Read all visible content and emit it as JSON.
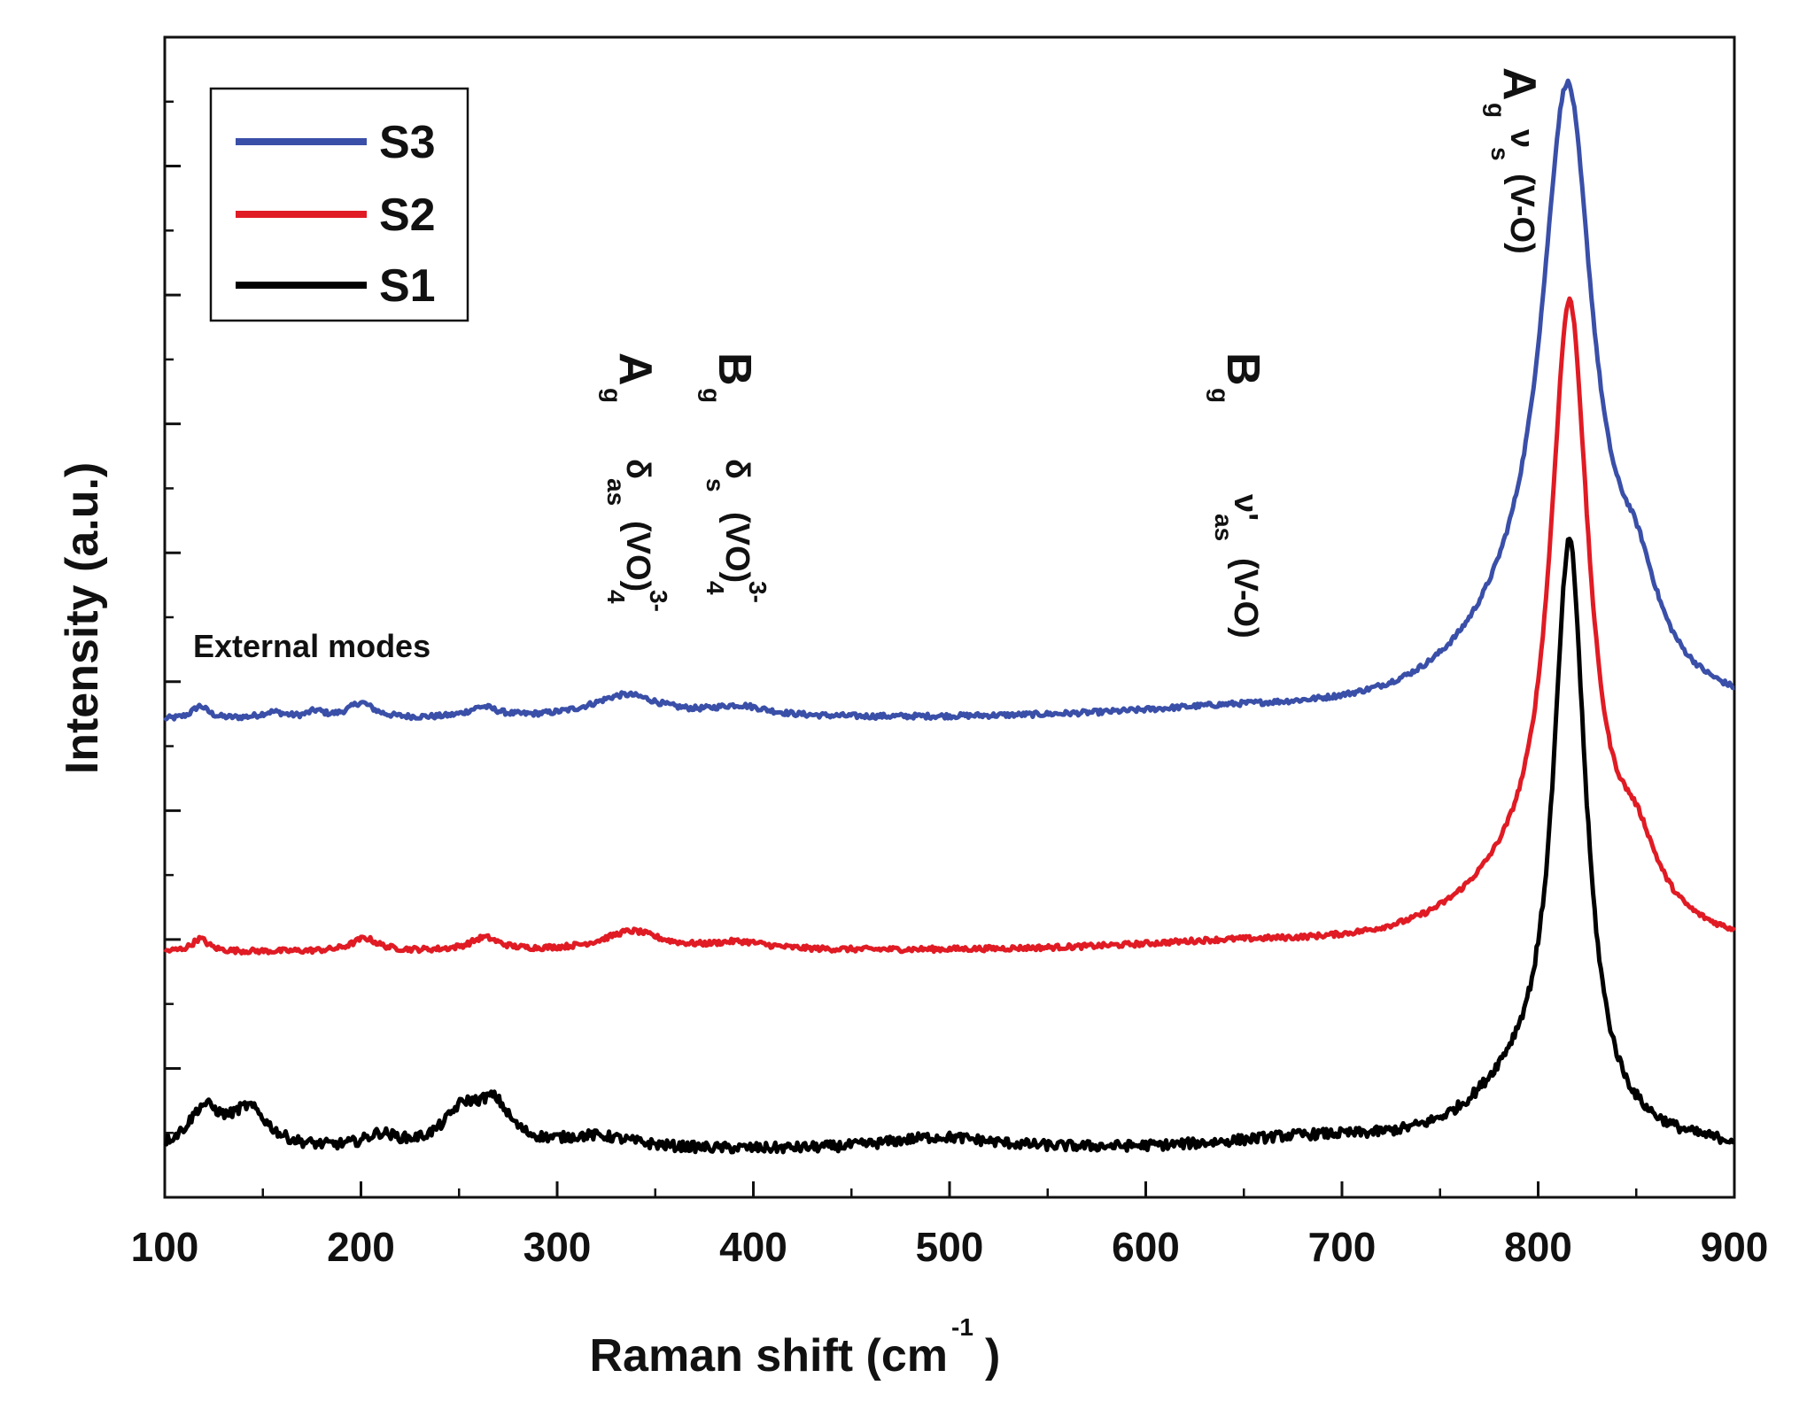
{
  "chart_data": {
    "type": "line",
    "title": "",
    "xlabel": "Raman shift (cm",
    "xlabel_sup": "-1",
    "xlabel_close": ")",
    "ylabel": "Intensity (a.u.)",
    "xlim": [
      100,
      900
    ],
    "ylim": [
      0,
      9
    ],
    "x_ticks": [
      100,
      200,
      300,
      400,
      500,
      600,
      700,
      800,
      900
    ],
    "y_ticks_shown": false,
    "legend_position": "top-left",
    "legend": [
      "S3",
      "S2",
      "S1"
    ],
    "series": [
      {
        "name": "S3",
        "color": "#3a4fa8",
        "offset": 3.7,
        "peaks": [
          {
            "x": 118,
            "amp": 0.1,
            "w": 5
          },
          {
            "x": 155,
            "amp": 0.05,
            "w": 8
          },
          {
            "x": 177,
            "amp": 0.05,
            "w": 5
          },
          {
            "x": 200,
            "amp": 0.12,
            "w": 8
          },
          {
            "x": 262,
            "amp": 0.08,
            "w": 9
          },
          {
            "x": 335,
            "amp": 0.18,
            "w": 22
          },
          {
            "x": 393,
            "amp": 0.08,
            "w": 18
          },
          {
            "x": 640,
            "amp": 0.05,
            "w": 60
          },
          {
            "x": 815,
            "amp": 4.5,
            "w": 16
          },
          {
            "x": 850,
            "amp": 0.6,
            "w": 14
          },
          {
            "x": 790,
            "amp": 0.5,
            "w": 40
          }
        ],
        "noise": 0.02
      },
      {
        "name": "S2",
        "color": "#e01b24",
        "offset": 1.9,
        "peaks": [
          {
            "x": 118,
            "amp": 0.1,
            "w": 5
          },
          {
            "x": 202,
            "amp": 0.1,
            "w": 8
          },
          {
            "x": 263,
            "amp": 0.1,
            "w": 9
          },
          {
            "x": 338,
            "amp": 0.15,
            "w": 18
          },
          {
            "x": 393,
            "amp": 0.06,
            "w": 18
          },
          {
            "x": 640,
            "amp": 0.05,
            "w": 60
          },
          {
            "x": 816,
            "amp": 4.7,
            "w": 12
          },
          {
            "x": 850,
            "amp": 0.5,
            "w": 14
          },
          {
            "x": 790,
            "amp": 0.4,
            "w": 40
          }
        ],
        "noise": 0.02
      },
      {
        "name": "S1",
        "color": "#000000",
        "offset": 0.35,
        "peaks": [
          {
            "x": 120,
            "amp": 0.3,
            "w": 10
          },
          {
            "x": 143,
            "amp": 0.3,
            "w": 12
          },
          {
            "x": 210,
            "amp": 0.1,
            "w": 10
          },
          {
            "x": 252,
            "amp": 0.28,
            "w": 12
          },
          {
            "x": 268,
            "amp": 0.3,
            "w": 10
          },
          {
            "x": 320,
            "amp": 0.1,
            "w": 25
          },
          {
            "x": 495,
            "amp": 0.1,
            "w": 35
          },
          {
            "x": 680,
            "amp": 0.08,
            "w": 50
          },
          {
            "x": 816,
            "amp": 4.5,
            "w": 10
          },
          {
            "x": 790,
            "amp": 0.4,
            "w": 30
          }
        ],
        "noise": 0.04
      }
    ],
    "annotations": {
      "external": "External modes",
      "ag1_main": "A",
      "ag1_sub": "g",
      "ag1_mode": "δ",
      "ag1_mode_sub": "as",
      "ag1_group": "(VO)",
      "ag1_group_sub": "4",
      "ag1_group_sup": "3-",
      "bg1_main": "B",
      "bg1_sub": "g",
      "bg1_mode": "δ",
      "bg1_mode_sub": "s",
      "bg1_group": "(VO)",
      "bg1_group_sub": "4",
      "bg1_group_sup": "3-",
      "bg2_main": "B",
      "bg2_sub": "g",
      "bg2_mode": "ν'",
      "bg2_mode_sub": "as",
      "bg2_group": "(V-O)",
      "ag2_main": "A",
      "ag2_sub": "g",
      "ag2_mode": "ν",
      "ag2_mode_sub": "s",
      "ag2_group": "(V-O)"
    }
  }
}
